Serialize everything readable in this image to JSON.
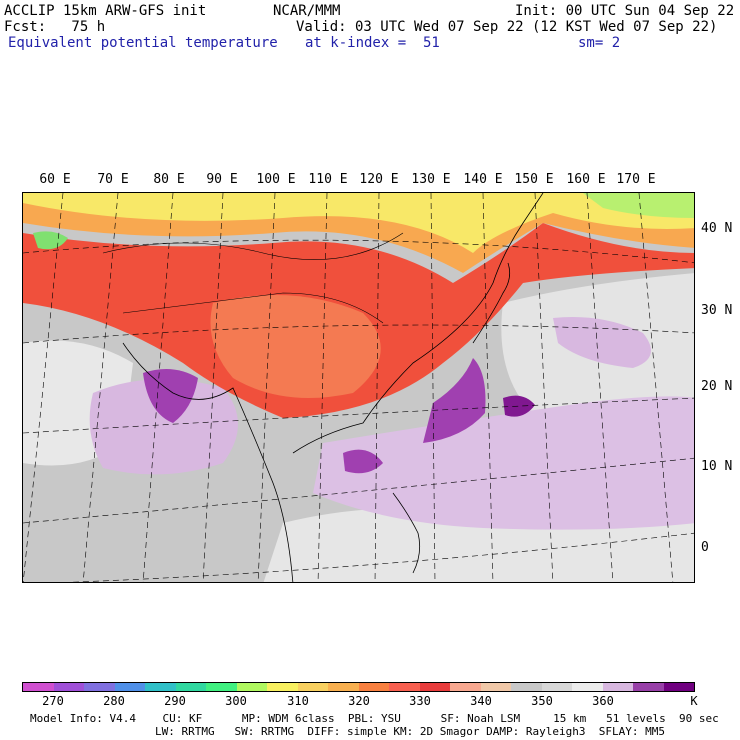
{
  "header": {
    "model": "ACCLIP 15km ARW-GFS init",
    "org": "NCAR/MMM",
    "init": "Init: 00 UTC Sun 04 Sep 22",
    "fcst": "Fcst:   75 h",
    "valid": "Valid: 03 UTC Wed 07 Sep 22 (12 KST Wed 07 Sep 22)",
    "field": "Equivalent potential temperature",
    "level": "at k-index =  51",
    "smooth": "sm= 2"
  },
  "map": {
    "lon_labels": [
      "60 E",
      "70 E",
      "80 E",
      "90 E",
      "100 E",
      "110 E",
      "120 E",
      "130 E",
      "140 E",
      "150 E",
      "160 E",
      "170 E"
    ],
    "lat_labels": [
      "40 N",
      "30 N",
      "20 N",
      "10 N",
      "0"
    ],
    "colors": {
      "ocean_gray": "#c8c8c8",
      "light_gray": "#e4e4e4",
      "lilac": "#d8b8e0",
      "magenta_purple": "#a040b0",
      "dark_purple": "#801890",
      "red": "#f0503c",
      "orange_red": "#f47a52",
      "orange": "#f8a850",
      "yellow": "#f8e868",
      "light_green": "#b8f070",
      "green": "#80e070"
    }
  },
  "colorbar": {
    "colors": [
      "#d050d0",
      "#a050d8",
      "#8070e0",
      "#5090e8",
      "#30c0c8",
      "#30d8a0",
      "#40f080",
      "#b0f860",
      "#f8f060",
      "#f8d060",
      "#f8b050",
      "#f88040",
      "#f86050",
      "#e83c3c",
      "#f8a890",
      "#f0c8a8",
      "#c8c8c8",
      "#d8d8d8",
      "#ececec",
      "#d8b8e0",
      "#9840a8",
      "#700080"
    ],
    "labels": [
      "270",
      "280",
      "290",
      "300",
      "310",
      "320",
      "330",
      "340",
      "350",
      "360",
      "K"
    ]
  },
  "footer": {
    "line1": "Model Info: V4.4    CU: KF      MP: WDM 6class  PBL: YSU      SF: Noah LSM     15 km   51 levels  90 sec",
    "line2": "LW: RRTMG   SW: RRTMG  DIFF: simple KM: 2D Smagor DAMP: Rayleigh3  SFLAY: MM5"
  }
}
